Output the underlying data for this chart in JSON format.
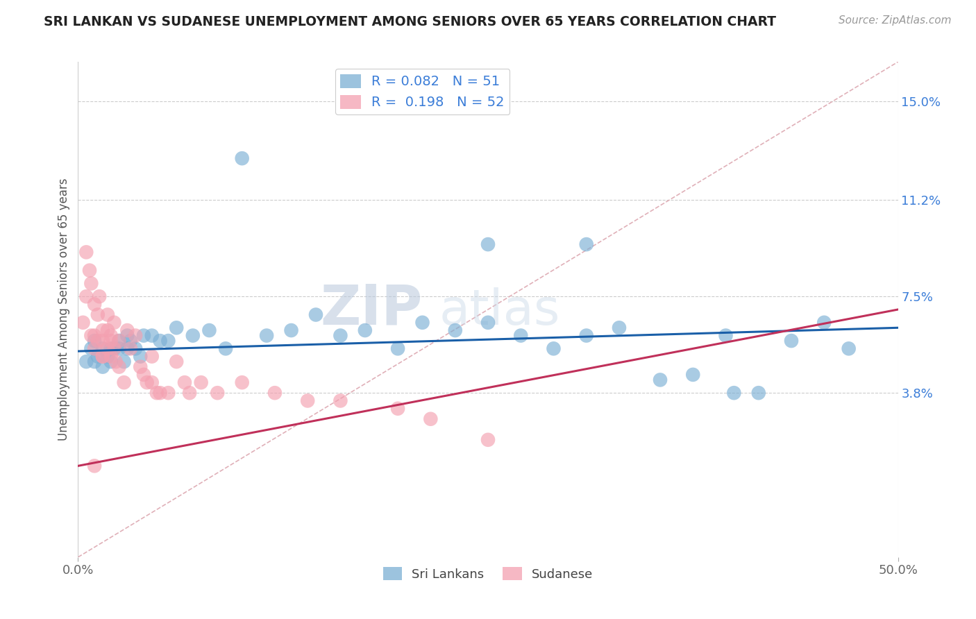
{
  "title": "SRI LANKAN VS SUDANESE UNEMPLOYMENT AMONG SENIORS OVER 65 YEARS CORRELATION CHART",
  "source": "Source: ZipAtlas.com",
  "ylabel": "Unemployment Among Seniors over 65 years",
  "xlim": [
    0,
    0.5
  ],
  "ylim": [
    -0.025,
    0.165
  ],
  "xticks": [
    0.0,
    0.5
  ],
  "xticklabels": [
    "0.0%",
    "50.0%"
  ],
  "right_yticks": [
    0.038,
    0.075,
    0.112,
    0.15
  ],
  "right_yticklabels": [
    "3.8%",
    "7.5%",
    "11.2%",
    "15.0%"
  ],
  "sri_lankan_color": "#7BAFD4",
  "sudanese_color": "#F4A0B0",
  "sri_lankan_line_color": "#1A5FA8",
  "sudanese_line_color": "#C0305A",
  "diagonal_line_color": "#E0B0B8",
  "grid_color": "#CCCCCC",
  "sri_lankan_R": 0.082,
  "sri_lankan_N": 51,
  "sudanese_R": 0.198,
  "sudanese_N": 52,
  "watermark_zip": "ZIP",
  "watermark_atlas": "atlas",
  "legend_label_1": "Sri Lankans",
  "legend_label_2": "Sudanese",
  "sri_lankans_x": [
    0.005,
    0.008,
    0.01,
    0.01,
    0.012,
    0.015,
    0.015,
    0.018,
    0.02,
    0.02,
    0.022,
    0.025,
    0.025,
    0.028,
    0.03,
    0.03,
    0.032,
    0.035,
    0.038,
    0.04,
    0.045,
    0.05,
    0.055,
    0.06,
    0.07,
    0.08,
    0.09,
    0.1,
    0.115,
    0.13,
    0.145,
    0.16,
    0.175,
    0.195,
    0.21,
    0.23,
    0.25,
    0.27,
    0.29,
    0.31,
    0.33,
    0.355,
    0.375,
    0.395,
    0.415,
    0.435,
    0.455,
    0.47,
    0.25,
    0.31,
    0.4
  ],
  "sri_lankans_y": [
    0.05,
    0.055,
    0.058,
    0.05,
    0.052,
    0.055,
    0.048,
    0.052,
    0.055,
    0.05,
    0.055,
    0.058,
    0.055,
    0.05,
    0.06,
    0.055,
    0.058,
    0.055,
    0.052,
    0.06,
    0.06,
    0.058,
    0.058,
    0.063,
    0.06,
    0.062,
    0.055,
    0.128,
    0.06,
    0.062,
    0.068,
    0.06,
    0.062,
    0.055,
    0.065,
    0.062,
    0.065,
    0.06,
    0.055,
    0.06,
    0.063,
    0.043,
    0.045,
    0.06,
    0.038,
    0.058,
    0.065,
    0.055,
    0.095,
    0.095,
    0.038
  ],
  "sudanese_x": [
    0.003,
    0.005,
    0.005,
    0.007,
    0.008,
    0.008,
    0.01,
    0.01,
    0.01,
    0.012,
    0.012,
    0.013,
    0.015,
    0.015,
    0.015,
    0.015,
    0.018,
    0.018,
    0.018,
    0.02,
    0.02,
    0.02,
    0.022,
    0.022,
    0.023,
    0.025,
    0.025,
    0.028,
    0.03,
    0.032,
    0.035,
    0.038,
    0.04,
    0.042,
    0.045,
    0.045,
    0.048,
    0.05,
    0.055,
    0.06,
    0.065,
    0.068,
    0.075,
    0.085,
    0.1,
    0.12,
    0.14,
    0.16,
    0.195,
    0.215,
    0.25,
    0.01
  ],
  "sudanese_y": [
    0.065,
    0.092,
    0.075,
    0.085,
    0.08,
    0.06,
    0.055,
    0.072,
    0.06,
    0.068,
    0.058,
    0.075,
    0.052,
    0.062,
    0.058,
    0.052,
    0.068,
    0.062,
    0.055,
    0.06,
    0.058,
    0.052,
    0.065,
    0.055,
    0.05,
    0.058,
    0.048,
    0.042,
    0.062,
    0.055,
    0.06,
    0.048,
    0.045,
    0.042,
    0.052,
    0.042,
    0.038,
    0.038,
    0.038,
    0.05,
    0.042,
    0.038,
    0.042,
    0.038,
    0.042,
    0.038,
    0.035,
    0.035,
    0.032,
    0.028,
    0.02,
    0.01
  ]
}
